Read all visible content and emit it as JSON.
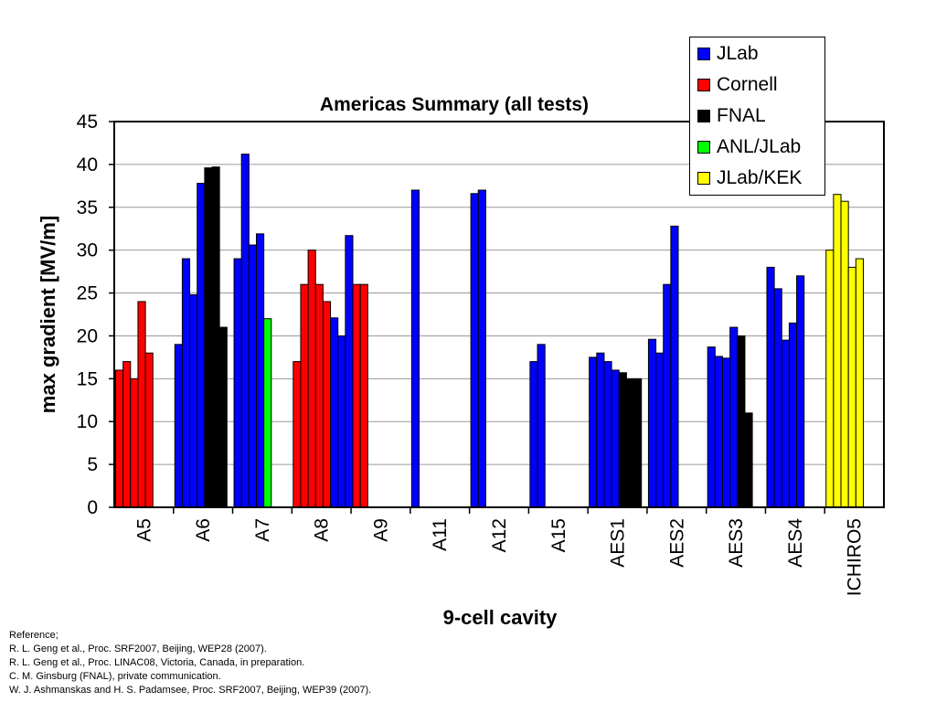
{
  "chart_data": {
    "type": "bar",
    "title": "Americas Summary (all tests)",
    "xlabel": "9-cell cavity",
    "ylabel": "max gradient [MV/m]",
    "ylim": [
      0,
      45
    ],
    "yticks": [
      0,
      5,
      10,
      15,
      20,
      25,
      30,
      35,
      40,
      45
    ],
    "grid": true,
    "legend_position": "top-right",
    "series": [
      {
        "name": "JLab",
        "color": "#0000ff"
      },
      {
        "name": "Cornell",
        "color": "#ff0000"
      },
      {
        "name": "FNAL",
        "color": "#000000"
      },
      {
        "name": "ANL/JLab",
        "color": "#00ff00"
      },
      {
        "name": "JLab/KEK",
        "color": "#ffff00"
      }
    ],
    "categories": [
      {
        "label": "A5",
        "bars": [
          {
            "lab": "Cornell",
            "value": 16.0
          },
          {
            "lab": "Cornell",
            "value": 17.0
          },
          {
            "lab": "Cornell",
            "value": 15.0
          },
          {
            "lab": "Cornell",
            "value": 24.0
          },
          {
            "lab": "Cornell",
            "value": 18.0
          }
        ]
      },
      {
        "label": "A6",
        "bars": [
          {
            "lab": "JLab",
            "value": 19.0
          },
          {
            "lab": "JLab",
            "value": 29.0
          },
          {
            "lab": "JLab",
            "value": 24.8
          },
          {
            "lab": "JLab",
            "value": 37.8
          },
          {
            "lab": "FNAL",
            "value": 39.6
          },
          {
            "lab": "FNAL",
            "value": 39.7
          },
          {
            "lab": "FNAL",
            "value": 21.0
          }
        ]
      },
      {
        "label": "A7",
        "bars": [
          {
            "lab": "JLab",
            "value": 29.0
          },
          {
            "lab": "JLab",
            "value": 41.2
          },
          {
            "lab": "JLab",
            "value": 30.6
          },
          {
            "lab": "JLab",
            "value": 31.9
          },
          {
            "lab": "ANL/JLab",
            "value": 22.0
          }
        ]
      },
      {
        "label": "A8",
        "bars": [
          {
            "lab": "Cornell",
            "value": 17.0
          },
          {
            "lab": "Cornell",
            "value": 26.0
          },
          {
            "lab": "Cornell",
            "value": 30.0
          },
          {
            "lab": "Cornell",
            "value": 26.0
          },
          {
            "lab": "Cornell",
            "value": 24.0
          },
          {
            "lab": "JLab",
            "value": 22.1
          },
          {
            "lab": "JLab",
            "value": 20.0
          },
          {
            "lab": "JLab",
            "value": 31.7
          },
          {
            "lab": "Cornell",
            "value": 26.0
          },
          {
            "lab": "Cornell",
            "value": 26.0
          }
        ]
      },
      {
        "label": "A9",
        "bars": []
      },
      {
        "label": "A11",
        "bars": [
          {
            "lab": "JLab",
            "value": 37.0
          }
        ]
      },
      {
        "label": "A12",
        "bars": [
          {
            "lab": "JLab",
            "value": 36.6
          },
          {
            "lab": "JLab",
            "value": 37.0
          }
        ]
      },
      {
        "label": "A15",
        "bars": [
          {
            "lab": "JLab",
            "value": 17.0
          },
          {
            "lab": "JLab",
            "value": 19.0
          }
        ]
      },
      {
        "label": "AES1",
        "bars": [
          {
            "lab": "JLab",
            "value": 17.5
          },
          {
            "lab": "JLab",
            "value": 18.0
          },
          {
            "lab": "JLab",
            "value": 17.0
          },
          {
            "lab": "JLab",
            "value": 16.0
          },
          {
            "lab": "FNAL",
            "value": 15.7
          },
          {
            "lab": "FNAL",
            "value": 15.0
          },
          {
            "lab": "FNAL",
            "value": 15.0
          }
        ]
      },
      {
        "label": "AES2",
        "bars": [
          {
            "lab": "JLab",
            "value": 19.6
          },
          {
            "lab": "JLab",
            "value": 18.0
          },
          {
            "lab": "JLab",
            "value": 26.0
          },
          {
            "lab": "JLab",
            "value": 32.8
          }
        ]
      },
      {
        "label": "AES3",
        "bars": [
          {
            "lab": "JLab",
            "value": 18.7
          },
          {
            "lab": "JLab",
            "value": 17.6
          },
          {
            "lab": "JLab",
            "value": 17.4
          },
          {
            "lab": "JLab",
            "value": 21.0
          },
          {
            "lab": "FNAL",
            "value": 20.0
          },
          {
            "lab": "FNAL",
            "value": 11.0
          }
        ]
      },
      {
        "label": "AES4",
        "bars": [
          {
            "lab": "JLab",
            "value": 28.0
          },
          {
            "lab": "JLab",
            "value": 25.5
          },
          {
            "lab": "JLab",
            "value": 19.5
          },
          {
            "lab": "JLab",
            "value": 21.5
          },
          {
            "lab": "JLab",
            "value": 27.0
          }
        ]
      },
      {
        "label": "ICHIRO5",
        "bars": [
          {
            "lab": "JLab/KEK",
            "value": 30.0
          },
          {
            "lab": "JLab/KEK",
            "value": 36.5
          },
          {
            "lab": "JLab/KEK",
            "value": 35.7
          },
          {
            "lab": "JLab/KEK",
            "value": 28.0
          },
          {
            "lab": "JLab/KEK",
            "value": 29.0
          }
        ]
      }
    ]
  },
  "reference": {
    "heading": "Reference;",
    "lines": [
      "R. L. Geng et al., Proc. SRF2007, Beijing, WEP28 (2007).",
      "R. L. Geng et al., Proc. LINAC08, Victoria, Canada, in preparation.",
      "C. M. Ginsburg (FNAL), private communication.",
      "W. J. Ashmanskas and H. S. Padamsee, Proc. SRF2007, Beijing, WEP39 (2007)."
    ]
  }
}
